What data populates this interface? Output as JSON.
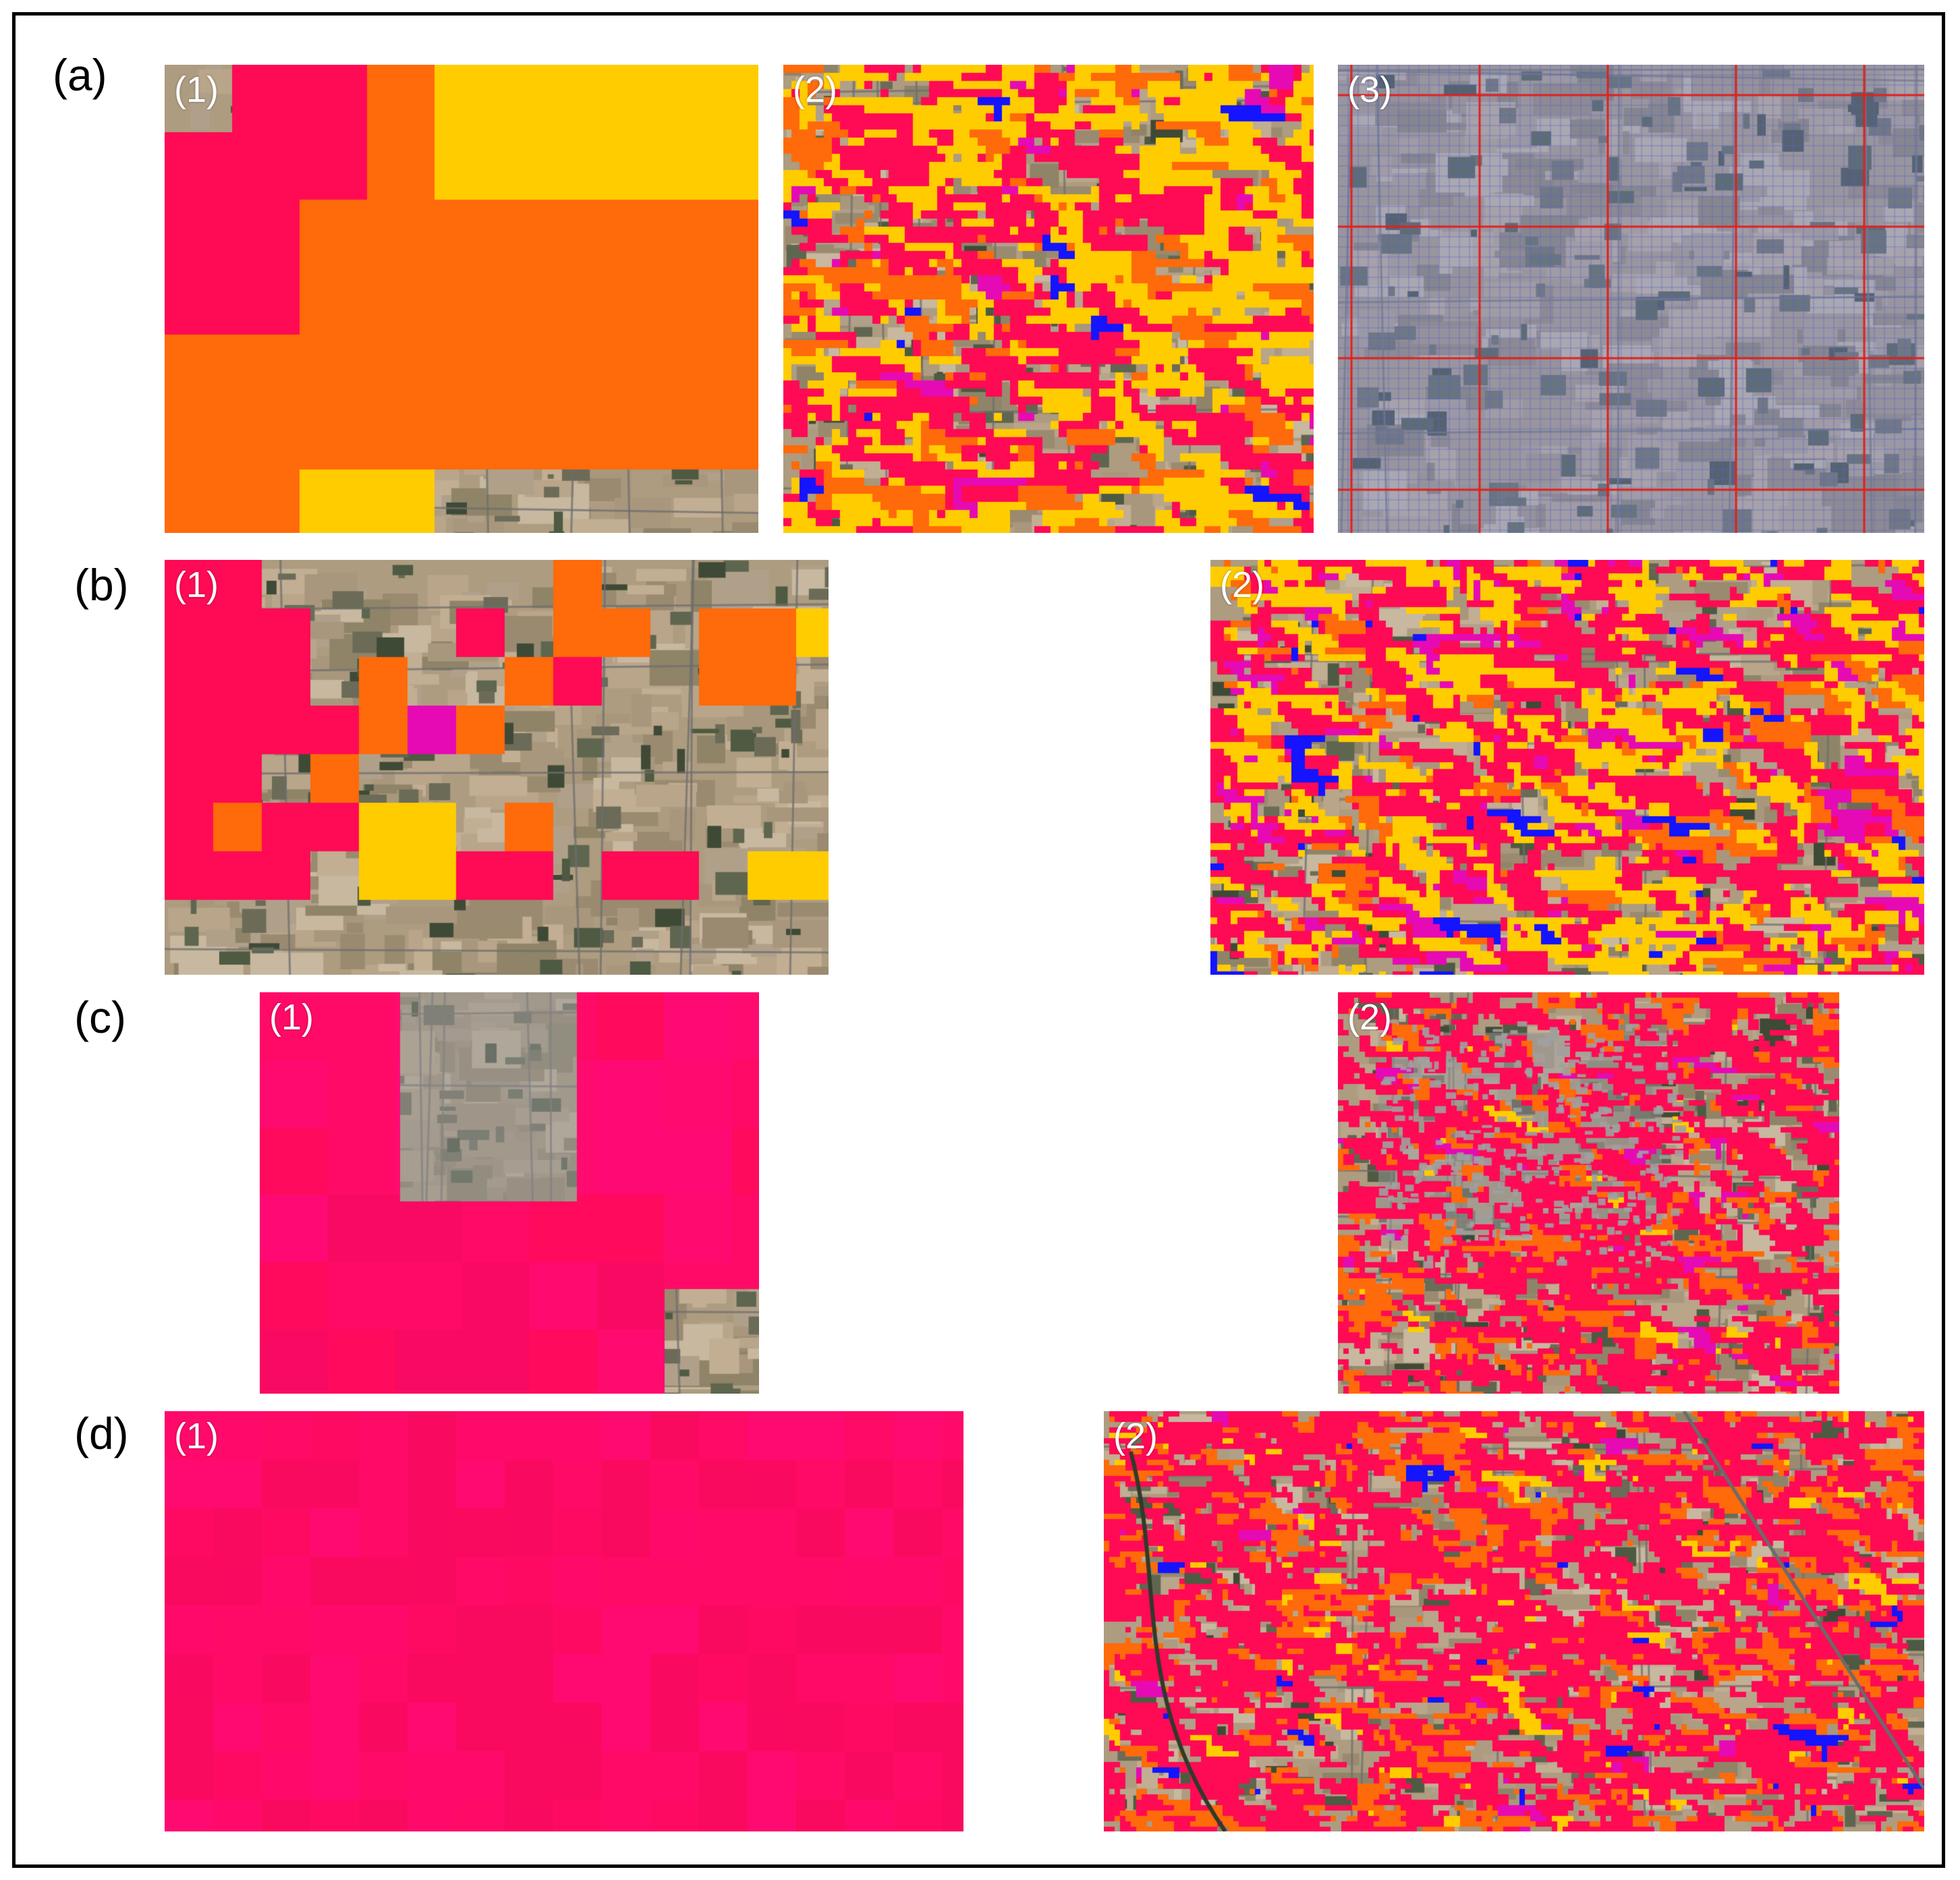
{
  "rows": [
    {
      "label": "(a)",
      "panels": [
        {
          "label": "(1)",
          "kind": "coarse-a"
        },
        {
          "label": "(2)",
          "kind": "fine-yellow"
        },
        {
          "label": "(3)",
          "kind": "grid-overlay"
        }
      ]
    },
    {
      "label": "(b)",
      "panels": [
        {
          "label": "(1)",
          "kind": "coarse-b"
        },
        {
          "label": "(2)",
          "kind": "fine-mixed"
        }
      ]
    },
    {
      "label": "(c)",
      "panels": [
        {
          "label": "(1)",
          "kind": "coarse-c"
        },
        {
          "label": "(2)",
          "kind": "fine-red-town"
        }
      ]
    },
    {
      "label": "(d)",
      "panels": [
        {
          "label": "(1)",
          "kind": "coarse-d"
        },
        {
          "label": "(2)",
          "kind": "fine-red"
        }
      ]
    }
  ],
  "legend_colors": {
    "red": "#ff0a54",
    "magenta": "#ff0a80",
    "orange": "#ff6a0a",
    "yellow": "#ffcc00",
    "pink": "#e60ab4",
    "blue": "#1414ff",
    "grid_line": "#e0201e",
    "grid_fine": "#7a86c8"
  }
}
